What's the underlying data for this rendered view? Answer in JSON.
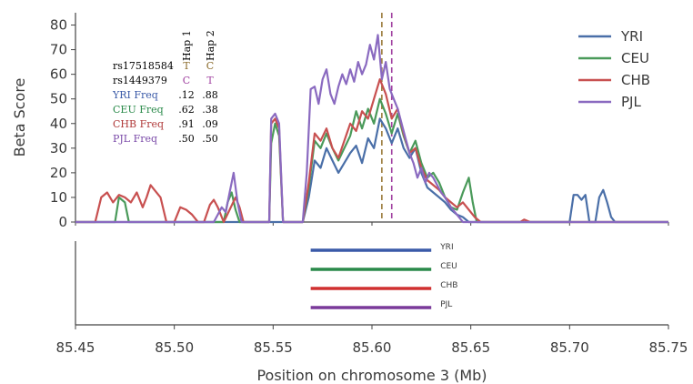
{
  "chart_data": [
    {
      "type": "line",
      "xlim": [
        85.45,
        85.75
      ],
      "ylim": [
        0,
        85
      ],
      "ylabel": "Beta Score",
      "x_ticks": [
        "85.45",
        "85.50",
        "85.55",
        "85.60",
        "85.65",
        "85.70",
        "85.75"
      ],
      "x_tick_values": [
        85.45,
        85.5,
        85.55,
        85.6,
        85.65,
        85.7,
        85.75
      ],
      "y_ticks": [
        "0",
        "10",
        "20",
        "30",
        "40",
        "50",
        "60",
        "70",
        "80"
      ],
      "y_tick_values": [
        0,
        10,
        20,
        30,
        40,
        50,
        60,
        70,
        80
      ],
      "legend_position": "top-right",
      "vlines": [
        {
          "x": 85.605,
          "color": "#9a7a3a"
        },
        {
          "x": 85.61,
          "color": "#a040a0"
        }
      ],
      "series": [
        {
          "name": "YRI",
          "color": "#4a6fa8",
          "points": [
            [
              85.45,
              0
            ],
            [
              85.55,
              0
            ],
            [
              85.565,
              0
            ],
            [
              85.568,
              10
            ],
            [
              85.571,
              25
            ],
            [
              85.574,
              22
            ],
            [
              85.577,
              30
            ],
            [
              85.58,
              25
            ],
            [
              85.583,
              20
            ],
            [
              85.586,
              24
            ],
            [
              85.589,
              28
            ],
            [
              85.592,
              31
            ],
            [
              85.595,
              24
            ],
            [
              85.598,
              34
            ],
            [
              85.601,
              30
            ],
            [
              85.604,
              42
            ],
            [
              85.607,
              38
            ],
            [
              85.61,
              32
            ],
            [
              85.613,
              38
            ],
            [
              85.616,
              30
            ],
            [
              85.619,
              26
            ],
            [
              85.622,
              30
            ],
            [
              85.625,
              20
            ],
            [
              85.628,
              14
            ],
            [
              85.631,
              12
            ],
            [
              85.634,
              10
            ],
            [
              85.637,
              8
            ],
            [
              85.64,
              5
            ],
            [
              85.643,
              3
            ],
            [
              85.646,
              2
            ],
            [
              85.649,
              0
            ],
            [
              85.7,
              0
            ],
            [
              85.702,
              11
            ],
            [
              85.704,
              11
            ],
            [
              85.706,
              9
            ],
            [
              85.708,
              11
            ],
            [
              85.71,
              0
            ],
            [
              85.713,
              0
            ],
            [
              85.715,
              10
            ],
            [
              85.717,
              13
            ],
            [
              85.719,
              8
            ],
            [
              85.721,
              2
            ],
            [
              85.723,
              0
            ],
            [
              85.75,
              0
            ]
          ]
        },
        {
          "name": "CEU",
          "color": "#4a9a5a",
          "points": [
            [
              85.45,
              0
            ],
            [
              85.47,
              0
            ],
            [
              85.472,
              10
            ],
            [
              85.475,
              8
            ],
            [
              85.477,
              0
            ],
            [
              85.525,
              0
            ],
            [
              85.527,
              8
            ],
            [
              85.529,
              12
            ],
            [
              85.531,
              5
            ],
            [
              85.533,
              0
            ],
            [
              85.548,
              0
            ],
            [
              85.549,
              32
            ],
            [
              85.551,
              40
            ],
            [
              85.553,
              35
            ],
            [
              85.555,
              0
            ],
            [
              85.565,
              0
            ],
            [
              85.568,
              14
            ],
            [
              85.571,
              33
            ],
            [
              85.574,
              30
            ],
            [
              85.577,
              36
            ],
            [
              85.58,
              30
            ],
            [
              85.583,
              25
            ],
            [
              85.586,
              30
            ],
            [
              85.589,
              35
            ],
            [
              85.592,
              45
            ],
            [
              85.595,
              38
            ],
            [
              85.598,
              46
            ],
            [
              85.601,
              40
            ],
            [
              85.604,
              50
            ],
            [
              85.607,
              44
            ],
            [
              85.61,
              36
            ],
            [
              85.613,
              44
            ],
            [
              85.616,
              35
            ],
            [
              85.619,
              28
            ],
            [
              85.622,
              33
            ],
            [
              85.625,
              24
            ],
            [
              85.628,
              18
            ],
            [
              85.631,
              20
            ],
            [
              85.634,
              16
            ],
            [
              85.637,
              10
            ],
            [
              85.64,
              6
            ],
            [
              85.643,
              5
            ],
            [
              85.646,
              12
            ],
            [
              85.649,
              18
            ],
            [
              85.651,
              8
            ],
            [
              85.653,
              0
            ],
            [
              85.75,
              0
            ]
          ]
        },
        {
          "name": "CHB",
          "color": "#c85050",
          "points": [
            [
              85.45,
              0
            ],
            [
              85.46,
              0
            ],
            [
              85.463,
              10
            ],
            [
              85.466,
              12
            ],
            [
              85.469,
              8
            ],
            [
              85.472,
              11
            ],
            [
              85.475,
              10
            ],
            [
              85.478,
              8
            ],
            [
              85.481,
              12
            ],
            [
              85.484,
              6
            ],
            [
              85.486,
              10
            ],
            [
              85.488,
              15
            ],
            [
              85.49,
              13
            ],
            [
              85.493,
              10
            ],
            [
              85.496,
              0
            ],
            [
              85.5,
              0
            ],
            [
              85.503,
              6
            ],
            [
              85.506,
              5
            ],
            [
              85.509,
              3
            ],
            [
              85.512,
              0
            ],
            [
              85.515,
              0
            ],
            [
              85.518,
              7
            ],
            [
              85.52,
              9
            ],
            [
              85.522,
              6
            ],
            [
              85.525,
              0
            ],
            [
              85.528,
              5
            ],
            [
              85.531,
              10
            ],
            [
              85.533,
              6
            ],
            [
              85.535,
              0
            ],
            [
              85.548,
              0
            ],
            [
              85.549,
              40
            ],
            [
              85.551,
              42
            ],
            [
              85.553,
              38
            ],
            [
              85.555,
              0
            ],
            [
              85.565,
              0
            ],
            [
              85.568,
              16
            ],
            [
              85.571,
              36
            ],
            [
              85.574,
              33
            ],
            [
              85.577,
              38
            ],
            [
              85.58,
              30
            ],
            [
              85.583,
              26
            ],
            [
              85.586,
              33
            ],
            [
              85.589,
              40
            ],
            [
              85.592,
              37
            ],
            [
              85.595,
              45
            ],
            [
              85.598,
              42
            ],
            [
              85.601,
              50
            ],
            [
              85.604,
              58
            ],
            [
              85.607,
              52
            ],
            [
              85.61,
              42
            ],
            [
              85.613,
              46
            ],
            [
              85.616,
              36
            ],
            [
              85.619,
              28
            ],
            [
              85.622,
              30
            ],
            [
              85.625,
              22
            ],
            [
              85.628,
              17
            ],
            [
              85.631,
              15
            ],
            [
              85.634,
              13
            ],
            [
              85.637,
              10
            ],
            [
              85.64,
              8
            ],
            [
              85.643,
              6
            ],
            [
              85.646,
              8
            ],
            [
              85.649,
              5
            ],
            [
              85.652,
              2
            ],
            [
              85.655,
              0
            ],
            [
              85.675,
              0
            ],
            [
              85.677,
              1
            ],
            [
              85.68,
              0
            ],
            [
              85.75,
              0
            ]
          ]
        },
        {
          "name": "PJL",
          "color": "#8a6ac0",
          "points": [
            [
              85.45,
              0
            ],
            [
              85.52,
              0
            ],
            [
              85.522,
              3
            ],
            [
              85.524,
              6
            ],
            [
              85.526,
              4
            ],
            [
              85.528,
              12
            ],
            [
              85.53,
              20
            ],
            [
              85.532,
              8
            ],
            [
              85.534,
              0
            ],
            [
              85.548,
              0
            ],
            [
              85.549,
              42
            ],
            [
              85.551,
              44
            ],
            [
              85.553,
              40
            ],
            [
              85.555,
              0
            ],
            [
              85.565,
              0
            ],
            [
              85.567,
              20
            ],
            [
              85.569,
              54
            ],
            [
              85.571,
              55
            ],
            [
              85.573,
              48
            ],
            [
              85.575,
              58
            ],
            [
              85.577,
              62
            ],
            [
              85.579,
              52
            ],
            [
              85.581,
              48
            ],
            [
              85.583,
              55
            ],
            [
              85.585,
              60
            ],
            [
              85.587,
              56
            ],
            [
              85.589,
              62
            ],
            [
              85.591,
              57
            ],
            [
              85.593,
              65
            ],
            [
              85.595,
              60
            ],
            [
              85.597,
              64
            ],
            [
              85.599,
              72
            ],
            [
              85.601,
              66
            ],
            [
              85.603,
              76
            ],
            [
              85.605,
              58
            ],
            [
              85.607,
              65
            ],
            [
              85.609,
              54
            ],
            [
              85.611,
              50
            ],
            [
              85.613,
              46
            ],
            [
              85.615,
              40
            ],
            [
              85.617,
              34
            ],
            [
              85.619,
              28
            ],
            [
              85.621,
              24
            ],
            [
              85.623,
              18
            ],
            [
              85.625,
              22
            ],
            [
              85.627,
              16
            ],
            [
              85.629,
              20
            ],
            [
              85.631,
              18
            ],
            [
              85.633,
              15
            ],
            [
              85.635,
              12
            ],
            [
              85.637,
              10
            ],
            [
              85.64,
              6
            ],
            [
              85.643,
              3
            ],
            [
              85.646,
              0
            ],
            [
              85.75,
              0
            ]
          ]
        }
      ]
    },
    {
      "type": "bar",
      "orientation": "horizontal",
      "xlim": [
        85.45,
        85.75
      ],
      "xlabel": "Position on chromosome 3 (Mb)",
      "bars": [
        {
          "label": "YRI",
          "start": 85.569,
          "end": 85.63,
          "color": "#3a5aa8"
        },
        {
          "label": "CEU",
          "start": 85.569,
          "end": 85.63,
          "color": "#2a8a4a"
        },
        {
          "label": "CHB",
          "start": 85.569,
          "end": 85.63,
          "color": "#d03030"
        },
        {
          "label": "PJL",
          "start": 85.569,
          "end": 85.63,
          "color": "#7a3a9a"
        }
      ]
    }
  ],
  "haplotype_table": {
    "headers": [
      "Hap 1",
      "Hap 2"
    ],
    "rows": [
      {
        "label": "rs17518584",
        "hap1": "T",
        "hap2": "C",
        "label_color": "#000000",
        "value_color": "#8a6a2a"
      },
      {
        "label": "rs1449379",
        "hap1": "C",
        "hap2": "T",
        "label_color": "#000000",
        "value_color": "#a040a0"
      },
      {
        "label": "YRI Freq",
        "hap1": ".12",
        "hap2": ".88",
        "label_color": "#3a5aa8",
        "value_color": "#000000"
      },
      {
        "label": "CEU Freq",
        "hap1": ".62",
        "hap2": ".38",
        "label_color": "#2a8a4a",
        "value_color": "#000000"
      },
      {
        "label": "CHB Freq",
        "hap1": ".91",
        "hap2": ".09",
        "label_color": "#b03a3a",
        "value_color": "#000000"
      },
      {
        "label": "PJL Freq",
        "hap1": ".50",
        "hap2": ".50",
        "label_color": "#7a4aa8",
        "value_color": "#000000"
      }
    ]
  }
}
